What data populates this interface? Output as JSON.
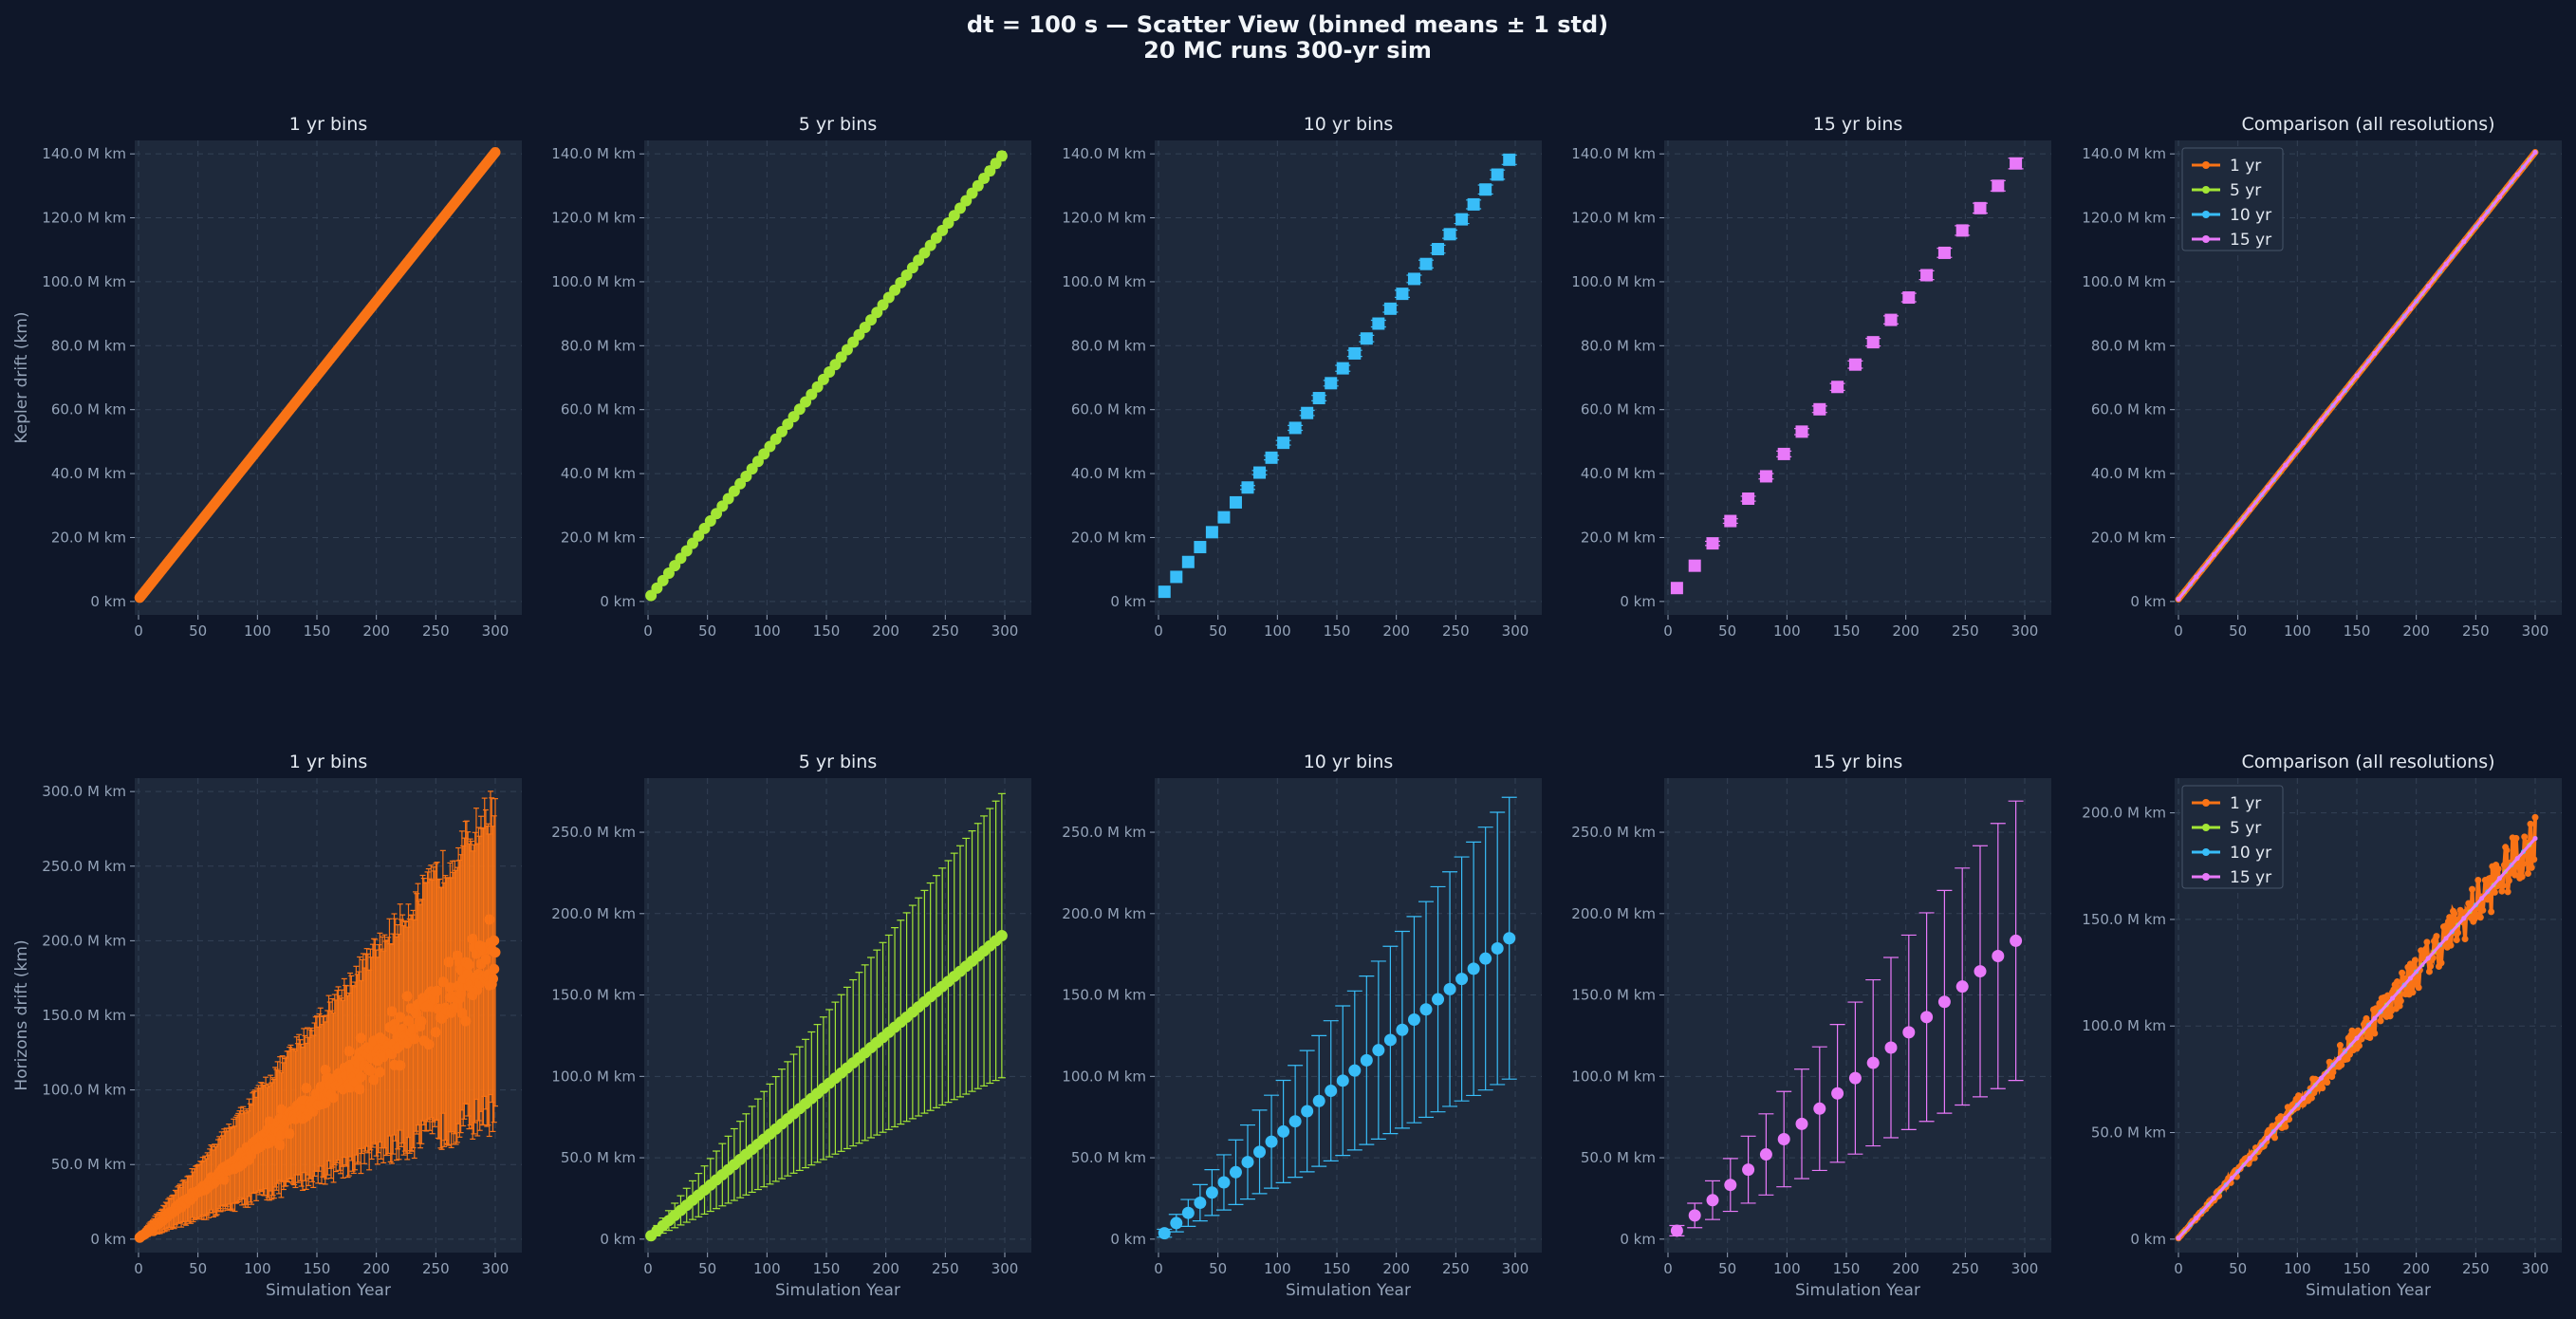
{
  "suptitle_lines": [
    "dt = 100 s — Scatter View  (binned means ± 1 std)",
    "20 MC runs  300-yr sim"
  ],
  "colors": {
    "background": "#0f1729",
    "axes_bg": "#1e293b",
    "grid": "#334155",
    "1yr": "#f97316",
    "5yr": "#a3e635",
    "10yr": "#38bdf8",
    "15yr": "#e879f9"
  },
  "chart_data": [
    {
      "type": "scatter",
      "row": 0,
      "title": "1 yr bins",
      "xlabel": "",
      "ylabel": "Kepler drift  (km)",
      "xlim": [
        0,
        300
      ],
      "ylim": [
        0,
        140000000
      ],
      "bin": 1,
      "color": "1yr",
      "mean": {
        "y0": 0.7,
        "slope": 0.466
      },
      "std": {
        "base": 0.1,
        "slope": 0.004
      },
      "xticks": [
        0,
        50,
        100,
        150,
        200,
        250,
        300
      ],
      "yticks": [
        0,
        20000000,
        40000000,
        60000000,
        80000000,
        100000000,
        120000000,
        140000000
      ],
      "ytick_labels": [
        "0 km",
        "20.0 M km",
        "40.0 M km",
        "60.0 M km",
        "80.0 M km",
        "100.0 M km",
        "120.0 M km",
        "140.0 M km"
      ],
      "ytick_label_x": "0 km",
      "ylabel_shown": true
    },
    {
      "type": "scatter",
      "row": 0,
      "title": "5 yr bins",
      "xlabel": "",
      "ylabel": "",
      "xlim": [
        0,
        300
      ],
      "ylim": [
        0,
        140000000
      ],
      "bin": 5,
      "color": "5yr",
      "mean": {
        "y0": 0.7,
        "slope": 0.466
      },
      "std": {
        "base": 0.2,
        "slope": 0.004
      },
      "xticks": [
        0,
        50,
        100,
        150,
        200,
        250,
        300
      ],
      "yticks": [
        0,
        20000000,
        40000000,
        60000000,
        80000000,
        100000000,
        120000000,
        140000000
      ],
      "ytick_labels": [
        "0 km",
        "20.0 M km",
        "40.0 M km",
        "60.0 M km",
        "80.0 M km",
        "100.0 M km",
        "120.0 M km",
        "140.0 M km"
      ]
    },
    {
      "type": "scatter",
      "row": 0,
      "title": "10 yr bins",
      "xlabel": "",
      "ylabel": "",
      "xlim": [
        0,
        300
      ],
      "ylim": [
        0,
        140000000
      ],
      "bin": 10,
      "color": "10yr",
      "mean": {
        "y0": 0.7,
        "slope": 0.466
      },
      "std": {
        "base": 0.3,
        "slope": 0.004
      },
      "xticks": [
        0,
        50,
        100,
        150,
        200,
        250,
        300
      ],
      "yticks": [
        0,
        20000000,
        40000000,
        60000000,
        80000000,
        100000000,
        120000000,
        140000000
      ],
      "ytick_labels": [
        "0 km",
        "20.0 M km",
        "40.0 M km",
        "60.0 M km",
        "80.0 M km",
        "100.0 M km",
        "120.0 M km",
        "140.0 M km"
      ]
    },
    {
      "type": "scatter",
      "row": 0,
      "title": "15 yr bins",
      "xlabel": "",
      "ylabel": "",
      "xlim": [
        0,
        300
      ],
      "ylim": [
        0,
        140000000
      ],
      "bin": 15,
      "color": "15yr",
      "mean": {
        "y0": 0.7,
        "slope": 0.466
      },
      "std": {
        "base": 0.5,
        "slope": 0.004
      },
      "xticks": [
        0,
        50,
        100,
        150,
        200,
        250,
        300
      ],
      "yticks": [
        0,
        20000000,
        40000000,
        60000000,
        80000000,
        100000000,
        120000000,
        140000000
      ],
      "ytick_labels": [
        "0 km",
        "20.0 M km",
        "40.0 M km",
        "60.0 M km",
        "80.0 M km",
        "100.0 M km",
        "120.0 M km",
        "140.0 M km"
      ]
    },
    {
      "type": "line",
      "row": 0,
      "title": "Comparison (all resolutions)",
      "xlabel": "",
      "ylabel": "",
      "xlim": [
        0,
        300
      ],
      "ylim": [
        0,
        140000000
      ],
      "comparison": true,
      "legend": [
        "1 yr",
        "5 yr",
        "10 yr",
        "15 yr"
      ],
      "legend_position": "top-left",
      "mean": {
        "y0": 0.7,
        "slope": 0.466
      },
      "xticks": [
        0,
        50,
        100,
        150,
        200,
        250,
        300
      ],
      "yticks": [
        0,
        20000000,
        40000000,
        60000000,
        80000000,
        100000000,
        120000000,
        140000000
      ],
      "ytick_labels": [
        "0 km",
        "20.0 M km",
        "40.0 M km",
        "60.0 M km",
        "80.0 M km",
        "100.0 M km",
        "120.0 M km",
        "140.0 M km"
      ]
    },
    {
      "type": "scatter",
      "row": 1,
      "title": "1 yr bins",
      "xlabel": "Simulation Year",
      "ylabel": "Horizons drift  (km)",
      "xlim": [
        0,
        300
      ],
      "ylim": [
        0,
        300000000
      ],
      "bin": 1,
      "color": "1yr",
      "mean": {
        "y0": 0.5,
        "slope": 0.625
      },
      "std": {
        "base": 1.0,
        "slope": 0.34
      },
      "noisy": true,
      "xticks": [
        0,
        50,
        100,
        150,
        200,
        250,
        300
      ],
      "yticks": [
        0,
        50000000,
        100000000,
        150000000,
        200000000,
        250000000,
        300000000
      ],
      "ytick_labels": [
        "0 km",
        "50.0 M km",
        "100.0 M km",
        "150.0 M km",
        "200.0 M km",
        "250.0 M km",
        "300.0 M km"
      ],
      "ylabel_shown": true
    },
    {
      "type": "scatter",
      "row": 1,
      "title": "5 yr bins",
      "xlabel": "Simulation Year",
      "ylabel": "",
      "xlim": [
        0,
        300
      ],
      "ylim": [
        0,
        275000000
      ],
      "bin": 5,
      "color": "5yr",
      "mean": {
        "y0": 0.5,
        "slope": 0.625
      },
      "std": {
        "base": 1.0,
        "slope": 0.29
      },
      "noisy": false,
      "xticks": [
        0,
        50,
        100,
        150,
        200,
        250,
        300
      ],
      "yticks": [
        0,
        50000000,
        100000000,
        150000000,
        200000000,
        250000000
      ],
      "ytick_labels": [
        "0 km",
        "50.0 M km",
        "100.0 M km",
        "150.0 M km",
        "200.0 M km",
        "250.0 M km"
      ]
    },
    {
      "type": "scatter",
      "row": 1,
      "title": "10 yr bins",
      "xlabel": "Simulation Year",
      "ylabel": "",
      "xlim": [
        0,
        300
      ],
      "ylim": [
        0,
        275000000
      ],
      "bin": 10,
      "color": "10yr",
      "mean": {
        "y0": 0.5,
        "slope": 0.625
      },
      "std": {
        "base": 1.0,
        "slope": 0.29
      },
      "xticks": [
        0,
        50,
        100,
        150,
        200,
        250,
        300
      ],
      "yticks": [
        0,
        50000000,
        100000000,
        150000000,
        200000000,
        250000000
      ],
      "ytick_labels": [
        "0 km",
        "50.0 M km",
        "100.0 M km",
        "150.0 M km",
        "200.0 M km",
        "250.0 M km"
      ]
    },
    {
      "type": "scatter",
      "row": 1,
      "title": "15 yr bins",
      "xlabel": "Simulation Year",
      "ylabel": "",
      "xlim": [
        0,
        300
      ],
      "ylim": [
        0,
        275000000
      ],
      "bin": 15,
      "color": "15yr",
      "mean": {
        "y0": 0.5,
        "slope": 0.625
      },
      "std": {
        "base": 1.0,
        "slope": 0.29
      },
      "xticks": [
        0,
        50,
        100,
        150,
        200,
        250,
        300
      ],
      "yticks": [
        0,
        50000000,
        100000000,
        150000000,
        200000000,
        250000000
      ],
      "ytick_labels": [
        "0 km",
        "50.0 M km",
        "100.0 M km",
        "150.0 M km",
        "200.0 M km",
        "250.0 M km"
      ]
    },
    {
      "type": "line",
      "row": 1,
      "title": "Comparison (all resolutions)",
      "xlabel": "Simulation Year",
      "ylabel": "",
      "xlim": [
        0,
        300
      ],
      "ylim": [
        0,
        210000000
      ],
      "comparison": true,
      "noisy": true,
      "legend": [
        "1 yr",
        "5 yr",
        "10 yr",
        "15 yr"
      ],
      "legend_position": "top-left",
      "mean": {
        "y0": 0.5,
        "slope": 0.625
      },
      "xticks": [
        0,
        50,
        100,
        150,
        200,
        250,
        300
      ],
      "yticks": [
        0,
        50000000,
        100000000,
        150000000,
        200000000
      ],
      "ytick_labels": [
        "0 km",
        "50.0 M km",
        "100.0 M km",
        "150.0 M km",
        "200.0 M km"
      ]
    }
  ]
}
